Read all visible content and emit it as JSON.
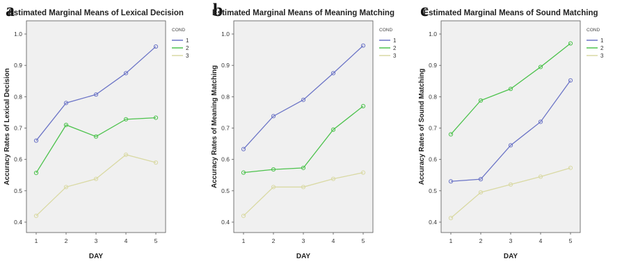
{
  "chart_data": [
    {
      "panel": "a",
      "type": "line",
      "title": "Estimated Marginal Means of Lexical Decision",
      "xlabel": "DAY",
      "ylabel": "Accuracy Rates of Lexical Decision",
      "x": [
        1,
        2,
        3,
        4,
        5
      ],
      "ylim": [
        0.4,
        1.0
      ],
      "yticks": [
        "0.4",
        "0.5",
        "0.6",
        "0.7",
        "0.8",
        "0.9",
        "1.0"
      ],
      "legend_title": "COND",
      "legend_position": "right",
      "grid": false,
      "series": [
        {
          "name": "1",
          "color": "#6b74c6",
          "values": [
            0.66,
            0.78,
            0.807,
            0.875,
            0.96
          ]
        },
        {
          "name": "2",
          "color": "#4cc24c",
          "values": [
            0.557,
            0.71,
            0.673,
            0.728,
            0.733
          ]
        },
        {
          "name": "3",
          "color": "#d9d9a3",
          "values": [
            0.42,
            0.512,
            0.538,
            0.615,
            0.59
          ]
        }
      ]
    },
    {
      "panel": "b",
      "type": "line",
      "title": "Estimated Marginal Means of Meaning Matching",
      "xlabel": "DAY",
      "ylabel": "Accuracy Rates of Meaning Matching",
      "x": [
        1,
        2,
        3,
        4,
        5
      ],
      "ylim": [
        0.4,
        1.0
      ],
      "yticks": [
        "0.4",
        "0.5",
        "0.6",
        "0.7",
        "0.8",
        "0.9",
        "1.0"
      ],
      "legend_title": "COND",
      "legend_position": "right",
      "grid": false,
      "series": [
        {
          "name": "1",
          "color": "#6b74c6",
          "values": [
            0.633,
            0.738,
            0.79,
            0.875,
            0.963
          ]
        },
        {
          "name": "2",
          "color": "#4cc24c",
          "values": [
            0.558,
            0.568,
            0.573,
            0.695,
            0.77
          ]
        },
        {
          "name": "3",
          "color": "#d9d9a3",
          "values": [
            0.42,
            0.512,
            0.512,
            0.538,
            0.558
          ]
        }
      ]
    },
    {
      "panel": "c",
      "type": "line",
      "title": "Estimated Marginal Means of Sound Matching",
      "xlabel": "DAY",
      "ylabel": "Accuracy Rates of Sound Matching",
      "x": [
        1,
        2,
        3,
        4,
        5
      ],
      "ylim": [
        0.4,
        1.0
      ],
      "yticks": [
        "0.4",
        "0.5",
        "0.6",
        "0.7",
        "0.8",
        "0.9",
        "1.0"
      ],
      "legend_title": "COND",
      "legend_position": "right",
      "grid": false,
      "series": [
        {
          "name": "1",
          "color": "#6b74c6",
          "values": [
            0.53,
            0.537,
            0.645,
            0.72,
            0.852
          ]
        },
        {
          "name": "2",
          "color": "#4cc24c",
          "values": [
            0.68,
            0.788,
            0.825,
            0.895,
            0.97
          ]
        },
        {
          "name": "3",
          "color": "#d9d9a3",
          "values": [
            0.413,
            0.495,
            0.52,
            0.545,
            0.573
          ]
        }
      ]
    }
  ],
  "panels": [
    {
      "letter": "a"
    },
    {
      "letter": "b"
    },
    {
      "letter": "c"
    }
  ]
}
